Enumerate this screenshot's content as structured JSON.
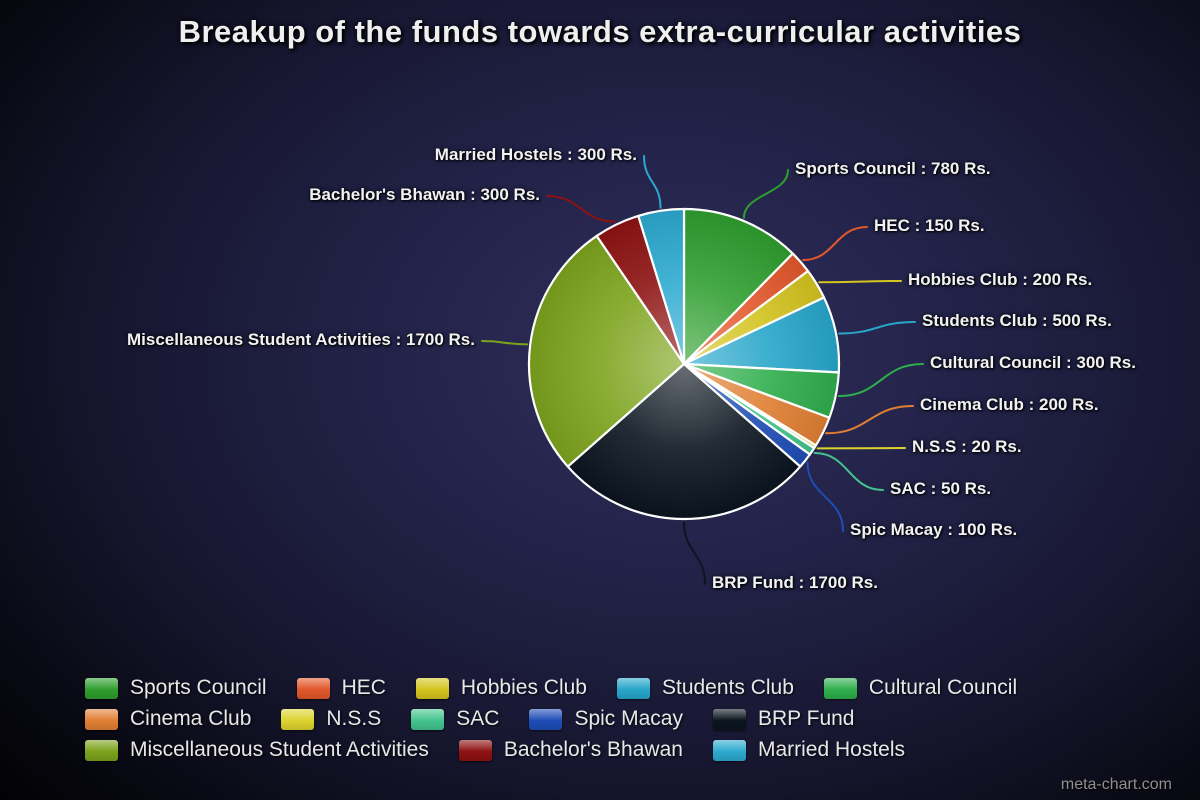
{
  "title": "Breakup of the funds towards extra-curricular activities",
  "watermark": "meta-chart.com",
  "chart_data": {
    "type": "pie",
    "title": "Breakup of the funds towards extra-curricular activities",
    "unit": "Rs.",
    "total": 6300,
    "legend_position": "bottom",
    "slices": [
      {
        "label": "Sports Council",
        "value": 780,
        "color": "#2f9e2f",
        "callout": "Sports Council : 780 Rs."
      },
      {
        "label": "HEC",
        "value": 150,
        "color": "#e2572b",
        "callout": "HEC : 150 Rs."
      },
      {
        "label": "Hobbies Club",
        "value": 200,
        "color": "#d4c41f",
        "callout": "Hobbies Club : 200 Rs."
      },
      {
        "label": "Students Club",
        "value": 500,
        "color": "#27a6ca",
        "callout": "Students Club : 500 Rs."
      },
      {
        "label": "Cultural Council",
        "value": 300,
        "color": "#2fae4c",
        "callout": "Cultural Council : 300 Rs."
      },
      {
        "label": "Cinema Club",
        "value": 200,
        "color": "#e07f33",
        "callout": "Cinema Club : 200 Rs."
      },
      {
        "label": "N.S.S",
        "value": 20,
        "color": "#ddd32f",
        "callout": "N.S.S : 20 Rs."
      },
      {
        "label": "SAC",
        "value": 50,
        "color": "#43c48e",
        "callout": "SAC : 50 Rs."
      },
      {
        "label": "Spic Macay",
        "value": 100,
        "color": "#1e4db6",
        "callout": "Spic Macay : 100 Rs."
      },
      {
        "label": "BRP Fund",
        "value": 1700,
        "color": "#0b151f",
        "callout": "BRP Fund : 1700 Rs."
      },
      {
        "label": "Miscellaneous Student Activities",
        "value": 1700,
        "color": "#7ca31c",
        "callout": "Miscellaneous Student Activities : 1700 Rs."
      },
      {
        "label": "Bachelor's Bhawan",
        "value": 300,
        "color": "#8e1212",
        "callout": "Bachelor's Bhawan : 300 Rs."
      },
      {
        "label": "Married Hostels",
        "value": 300,
        "color": "#2ca9cf",
        "callout": "Married Hostels : 300 Rs."
      }
    ],
    "legend_rows": [
      [
        0,
        1,
        2,
        3,
        4
      ],
      [
        5,
        6,
        7,
        8,
        9
      ],
      [
        10,
        11,
        12
      ]
    ]
  }
}
